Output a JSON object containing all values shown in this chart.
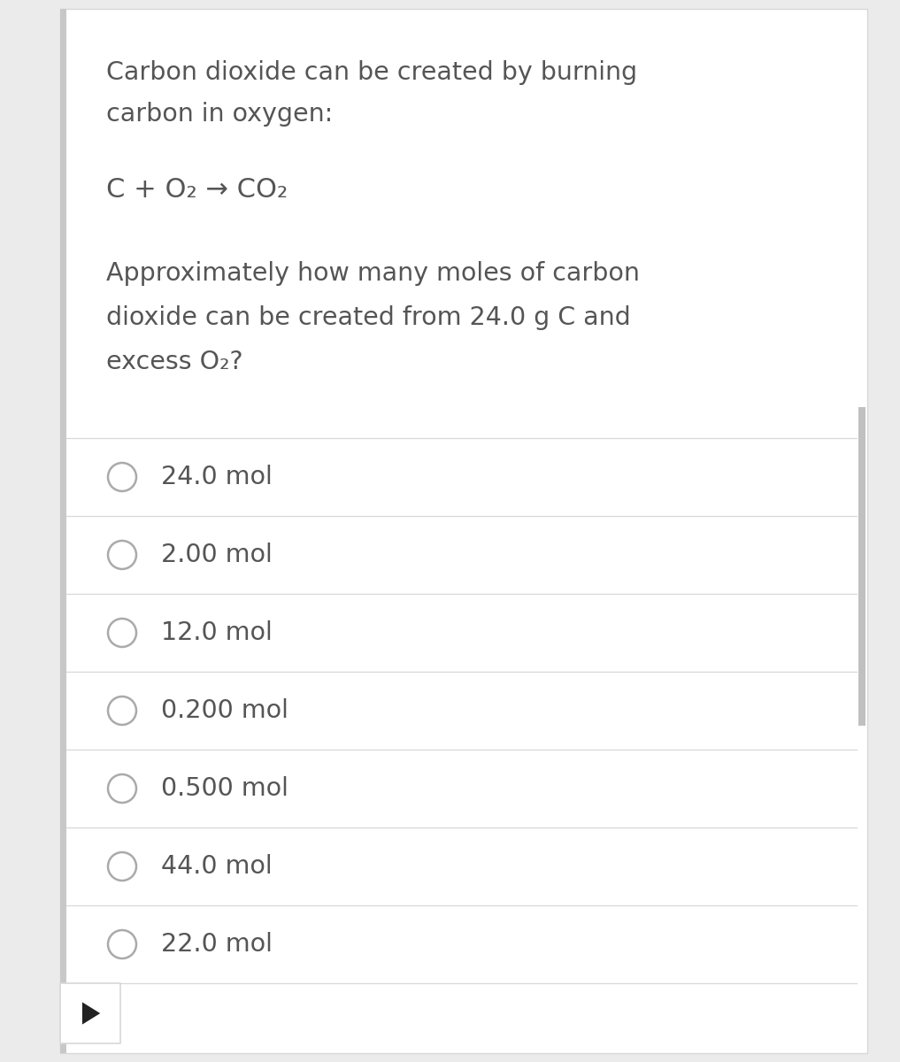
{
  "background_color": "#ebebeb",
  "panel_color": "#ffffff",
  "left_bar_color": "#c8c8c8",
  "right_scroll_color": "#c0c0c0",
  "text_color": "#555555",
  "divider_color": "#d8d8d8",
  "circle_color": "#aaaaaa",
  "question_text_line1": "Carbon dioxide can be created by burning",
  "question_text_line2": "carbon in oxygen:",
  "equation": "C + O₂ → CO₂",
  "question_line1": "Approximately how many moles of carbon",
  "question_line2": "dioxide can be created from 24.0 g C and",
  "question_line3": "excess O₂?",
  "choices": [
    "24.0 mol",
    "2.00 mol",
    "12.0 mol",
    "0.200 mol",
    "0.500 mol",
    "44.0 mol",
    "22.0 mol"
  ],
  "font_size_question": 20.5,
  "font_size_equation": 22,
  "font_size_choices": 20.5,
  "arrow_button_color": "#222222",
  "fig_width": 10.17,
  "fig_height": 12.0,
  "dpi": 100
}
